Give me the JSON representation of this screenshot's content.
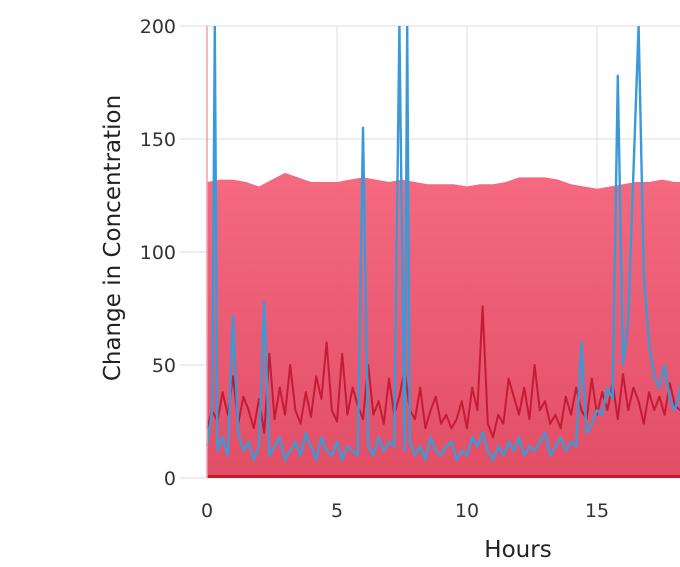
{
  "chart_data": {
    "type": "line",
    "title": "",
    "xlabel": "Hours",
    "ylabel": "Change in Concentration",
    "xlim": [
      0,
      18.4
    ],
    "ylim": [
      0,
      200
    ],
    "x_ticks": [
      "0",
      "5",
      "10",
      "15"
    ],
    "y_ticks": [
      "0",
      "50",
      "100",
      "150",
      "200"
    ],
    "grid": true,
    "legend": "none",
    "colors": {
      "band_top": "#f4617a",
      "band_bottom": "#e0455e",
      "dark_series": "#c41c35",
      "blue_series": "#3a9ad9",
      "grid": "#dedede"
    },
    "series": [
      {
        "role": "envelope-band",
        "x": [
          0,
          0.5,
          1,
          1.5,
          2,
          2.5,
          3,
          3.5,
          4,
          4.5,
          5,
          5.5,
          6,
          6.5,
          7,
          7.5,
          8,
          8.5,
          9,
          9.5,
          10,
          10.5,
          11,
          11.5,
          12,
          12.5,
          13,
          13.5,
          14,
          14.5,
          15,
          15.5,
          16,
          16.5,
          17,
          17.5,
          18,
          18.4
        ],
        "values": [
          131,
          132,
          132,
          131,
          129,
          132,
          135,
          133,
          131,
          131,
          131,
          132,
          133,
          132,
          131,
          132,
          131,
          130,
          130,
          130,
          129,
          130,
          130,
          131,
          133,
          133,
          133,
          132,
          130,
          129,
          128,
          129,
          130,
          131,
          131,
          132,
          131,
          131
        ]
      },
      {
        "role": "dark-line",
        "x": [
          0,
          0.2,
          0.4,
          0.6,
          0.8,
          1.0,
          1.2,
          1.4,
          1.6,
          1.8,
          2.0,
          2.2,
          2.4,
          2.6,
          2.8,
          3.0,
          3.2,
          3.4,
          3.6,
          3.8,
          4.0,
          4.2,
          4.4,
          4.6,
          4.8,
          5.0,
          5.2,
          5.4,
          5.6,
          5.8,
          6.0,
          6.2,
          6.4,
          6.6,
          6.8,
          7.0,
          7.2,
          7.4,
          7.6,
          7.8,
          8.0,
          8.2,
          8.4,
          8.6,
          8.8,
          9.0,
          9.2,
          9.4,
          9.6,
          9.8,
          10.0,
          10.2,
          10.4,
          10.6,
          10.8,
          11.0,
          11.2,
          11.4,
          11.6,
          11.8,
          12.0,
          12.2,
          12.4,
          12.6,
          12.8,
          13.0,
          13.2,
          13.4,
          13.6,
          13.8,
          14.0,
          14.2,
          14.4,
          14.6,
          14.8,
          15.0,
          15.2,
          15.4,
          15.6,
          15.8,
          16.0,
          16.2,
          16.4,
          16.6,
          16.8,
          17.0,
          17.2,
          17.4,
          17.6,
          17.8,
          18.0,
          18.2,
          18.4
        ],
        "values": [
          22,
          30,
          25,
          38,
          28,
          45,
          24,
          36,
          30,
          22,
          35,
          20,
          55,
          26,
          40,
          28,
          50,
          30,
          24,
          38,
          27,
          45,
          35,
          60,
          30,
          25,
          55,
          28,
          40,
          32,
          26,
          50,
          28,
          34,
          24,
          44,
          28,
          36,
          48,
          30,
          26,
          40,
          22,
          30,
          36,
          24,
          28,
          22,
          26,
          34,
          22,
          40,
          30,
          76,
          24,
          18,
          28,
          24,
          44,
          36,
          28,
          40,
          26,
          50,
          30,
          34,
          24,
          28,
          22,
          36,
          28,
          40,
          30,
          26,
          44,
          28,
          38,
          30,
          42,
          26,
          46,
          30,
          40,
          34,
          24,
          38,
          30,
          36,
          28,
          42,
          32,
          30,
          34
        ]
      },
      {
        "role": "blue-line",
        "x": [
          0,
          0.2,
          0.3,
          0.4,
          0.6,
          0.8,
          1.0,
          1.2,
          1.4,
          1.6,
          1.8,
          2.0,
          2.2,
          2.4,
          2.6,
          2.8,
          3.0,
          3.2,
          3.4,
          3.6,
          3.8,
          4.0,
          4.2,
          4.4,
          4.6,
          4.8,
          5.0,
          5.2,
          5.4,
          5.6,
          5.8,
          6.0,
          6.2,
          6.4,
          6.6,
          6.8,
          7.0,
          7.2,
          7.4,
          7.6,
          7.7,
          7.8,
          8.0,
          8.2,
          8.4,
          8.6,
          8.8,
          9.0,
          9.2,
          9.4,
          9.6,
          9.8,
          10.0,
          10.2,
          10.4,
          10.6,
          10.8,
          11.0,
          11.2,
          11.4,
          11.6,
          11.8,
          12.0,
          12.2,
          12.4,
          12.6,
          12.8,
          13.0,
          13.2,
          13.4,
          13.6,
          13.8,
          14.0,
          14.2,
          14.4,
          14.6,
          14.8,
          15.0,
          15.2,
          15.4,
          15.6,
          15.8,
          16.0,
          16.2,
          16.4,
          16.6,
          16.8,
          17.0,
          17.2,
          17.4,
          17.6,
          17.8,
          18.0,
          18.2,
          18.4
        ],
        "values": [
          14,
          30,
          200,
          12,
          18,
          10,
          72,
          20,
          12,
          16,
          8,
          14,
          78,
          10,
          14,
          18,
          8,
          12,
          16,
          10,
          20,
          14,
          8,
          18,
          12,
          10,
          16,
          8,
          14,
          12,
          10,
          155,
          14,
          10,
          18,
          12,
          16,
          14,
          200,
          12,
          200,
          16,
          10,
          14,
          8,
          18,
          12,
          10,
          14,
          16,
          8,
          12,
          10,
          18,
          14,
          20,
          12,
          8,
          14,
          10,
          16,
          12,
          18,
          10,
          14,
          12,
          16,
          20,
          10,
          14,
          18,
          12,
          16,
          14,
          60,
          20,
          24,
          30,
          28,
          40,
          35,
          178,
          50,
          70,
          135,
          200,
          90,
          60,
          45,
          40,
          50,
          35,
          30,
          40,
          30
        ]
      },
      {
        "role": "baseline",
        "x": [
          0,
          18.4
        ],
        "values": [
          0,
          0
        ]
      }
    ]
  }
}
